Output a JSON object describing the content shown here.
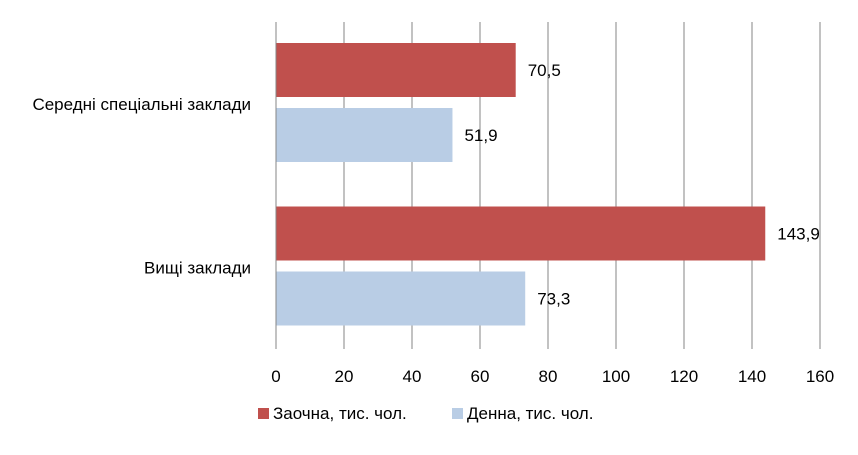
{
  "chart_data": {
    "type": "bar",
    "orientation": "horizontal",
    "title": "",
    "xlabel": "",
    "ylabel": "",
    "categories": [
      "Середні спеціальні заклади",
      "Вищі заклади"
    ],
    "series": [
      {
        "name": "Заочна, тис. чол.",
        "values": [
          70.5,
          143.9
        ],
        "labels": [
          "70,5",
          "143,9"
        ],
        "color": "#C0504D"
      },
      {
        "name": "Денна, тис. чол.",
        "values": [
          51.9,
          73.3
        ],
        "labels": [
          "51,9",
          "73,3"
        ],
        "color": "#B9CDE5"
      }
    ],
    "xlim": [
      0,
      160
    ],
    "xticks": [
      "0",
      "20",
      "40",
      "60",
      "80",
      "100",
      "120",
      "140",
      "160"
    ],
    "grid": "vertical",
    "gridline_color": "#868686",
    "legend_position": "bottom"
  }
}
